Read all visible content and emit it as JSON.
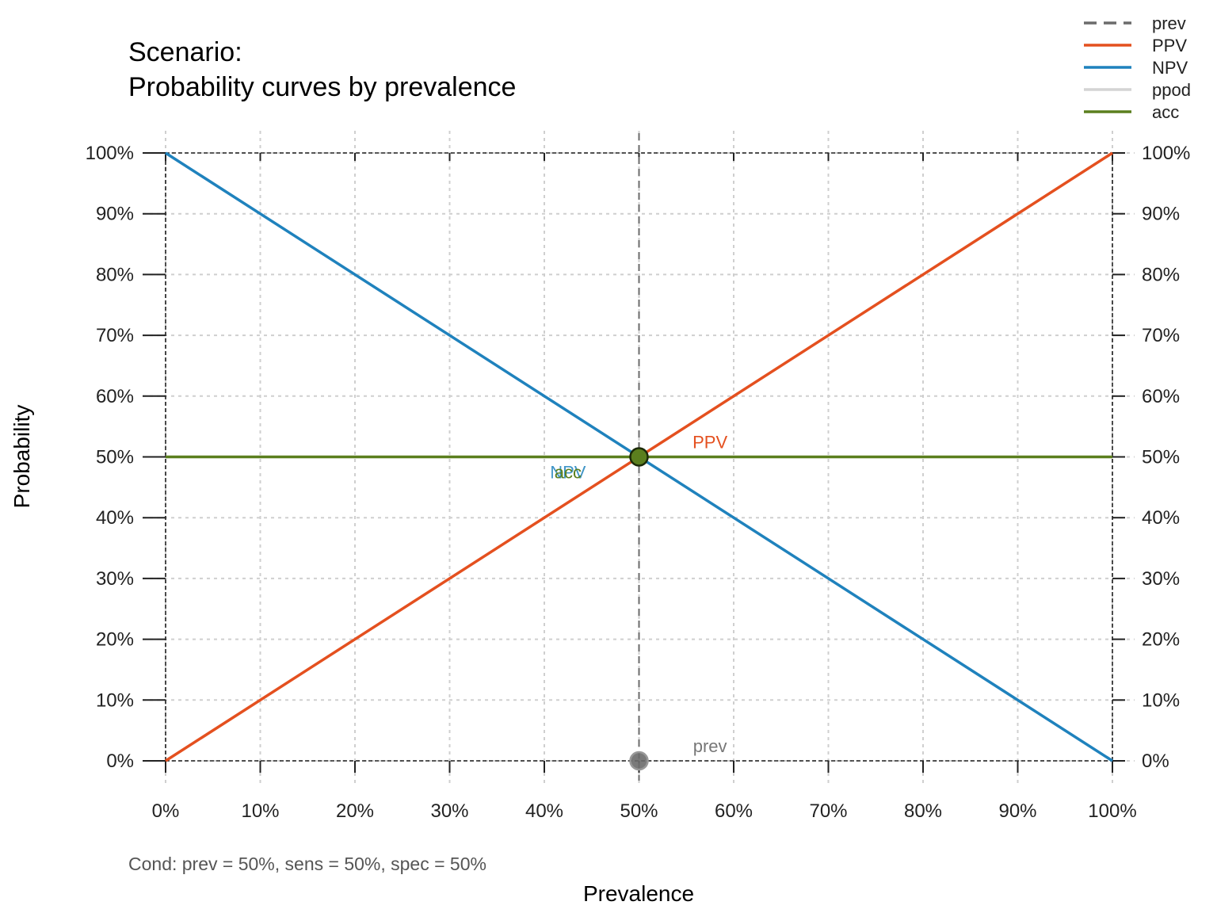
{
  "chart_data": {
    "type": "line",
    "title": "Scenario:",
    "subtitle": "Probability curves by prevalence",
    "xlabel": "Prevalence",
    "ylabel": "Probability",
    "xlim": [
      0,
      100
    ],
    "ylim": [
      0,
      100
    ],
    "x_ticks": [
      "0%",
      "10%",
      "20%",
      "30%",
      "40%",
      "50%",
      "60%",
      "70%",
      "80%",
      "90%",
      "100%"
    ],
    "y_ticks": [
      "0%",
      "10%",
      "20%",
      "30%",
      "40%",
      "50%",
      "60%",
      "70%",
      "80%",
      "90%",
      "100%"
    ],
    "grid": true,
    "legend_position": "top-right",
    "legend": [
      {
        "name": "prev",
        "color": "#6b6b6b",
        "style": "dashed"
      },
      {
        "name": "PPV",
        "color": "#e4501f",
        "style": "solid"
      },
      {
        "name": "NPV",
        "color": "#1f82bd",
        "style": "solid"
      },
      {
        "name": "ppod",
        "color": "#d4d4d4",
        "style": "solid"
      },
      {
        "name": "acc",
        "color": "#5b7f1e",
        "style": "solid"
      }
    ],
    "series": [
      {
        "name": "PPV",
        "color": "#e4501f",
        "x": [
          0,
          100
        ],
        "y": [
          0,
          100
        ]
      },
      {
        "name": "NPV",
        "color": "#1f82bd",
        "x": [
          0,
          100
        ],
        "y": [
          100,
          0
        ]
      },
      {
        "name": "acc",
        "color": "#5b7f1e",
        "x": [
          0,
          100
        ],
        "y": [
          50,
          50
        ]
      }
    ],
    "prev_line": {
      "name": "prev",
      "x": 50,
      "color": "#6b6b6b"
    },
    "points": [
      {
        "name": "acc",
        "x": 50,
        "y": 50,
        "color": "#5b7f1e"
      },
      {
        "name": "prev",
        "x": 50,
        "y": 0,
        "color": "#6b6b6b"
      }
    ],
    "annotations": [
      {
        "text": "PPV",
        "color": "#e4501f",
        "x": 57.5,
        "y": 52.5
      },
      {
        "text": "NPV",
        "color": "#1f82bd",
        "x": 42.5,
        "y": 47.5
      },
      {
        "text": "acc",
        "color": "#5b7f1e",
        "x": 42.5,
        "y": 47.5
      },
      {
        "text": "prev",
        "color": "#777777",
        "x": 57.5,
        "y": 2.5
      }
    ],
    "condition_text": "Cond:  prev = 50%, sens = 50%, spec = 50%"
  }
}
